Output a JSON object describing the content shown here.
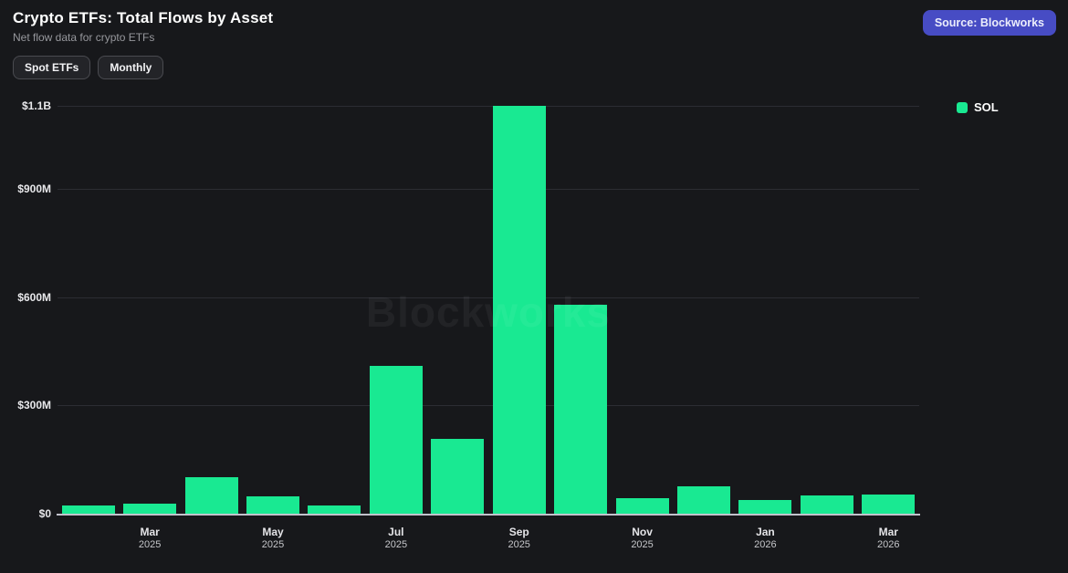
{
  "header": {
    "title": "Crypto ETFs: Total Flows by Asset",
    "subtitle": "Net flow data for crypto ETFs",
    "source_label": "Source: Blockworks"
  },
  "filters": [
    {
      "label": "Spot ETFs"
    },
    {
      "label": "Monthly"
    }
  ],
  "legend": [
    {
      "label": "SOL",
      "color": "#19e992"
    }
  ],
  "watermark": "Blockworks",
  "colors": {
    "background": "#17181b",
    "bar_green": "#19e992",
    "source_button": "#474cc4",
    "gridline": "#2c2d33",
    "axis_line": "#d5d5e0"
  },
  "chart_data": {
    "type": "bar",
    "title": "Crypto ETFs: Total Flows by Asset",
    "values_unit": "USD millions (net flow)",
    "grid": true,
    "legend_position": "right",
    "ylim": [
      0,
      1131
    ],
    "categories": [
      {
        "month": "Feb",
        "year": "2025",
        "labeled": false
      },
      {
        "month": "Mar",
        "year": "2025",
        "labeled": true
      },
      {
        "month": "Apr",
        "year": "2025",
        "labeled": false
      },
      {
        "month": "May",
        "year": "2025",
        "labeled": true
      },
      {
        "month": "Jun",
        "year": "2025",
        "labeled": false
      },
      {
        "month": "Jul",
        "year": "2025",
        "labeled": true
      },
      {
        "month": "Aug",
        "year": "2025",
        "labeled": false
      },
      {
        "month": "Sep",
        "year": "2025",
        "labeled": true
      },
      {
        "month": "Oct",
        "year": "2025",
        "labeled": false
      },
      {
        "month": "Nov",
        "year": "2025",
        "labeled": true
      },
      {
        "month": "Dec",
        "year": "2025",
        "labeled": false
      },
      {
        "month": "Jan",
        "year": "2026",
        "labeled": true
      },
      {
        "month": "Feb",
        "year": "2026",
        "labeled": false
      },
      {
        "month": "Mar",
        "year": "2026",
        "labeled": true
      }
    ],
    "series": [
      {
        "name": "SOL",
        "color": "#19e992",
        "values": [
          22,
          28,
          100,
          49,
          22,
          410,
          207,
          1131,
          579,
          42,
          75,
          37,
          50,
          52
        ]
      }
    ],
    "y_ticks": [
      {
        "value": 0,
        "label": "$0"
      },
      {
        "value": 300,
        "label": "$300M"
      },
      {
        "value": 600,
        "label": "$600M"
      },
      {
        "value": 900,
        "label": "$900M"
      },
      {
        "value": 1131,
        "label": "$1.1B"
      }
    ]
  }
}
